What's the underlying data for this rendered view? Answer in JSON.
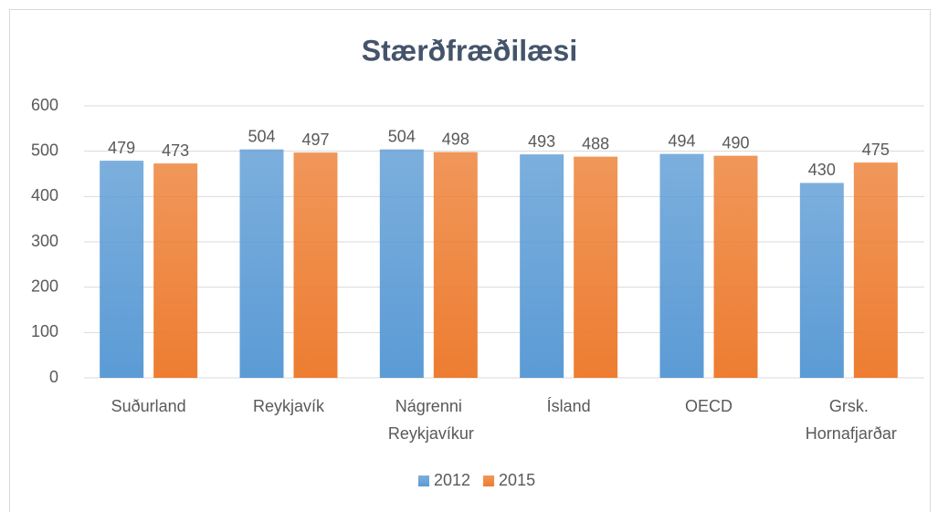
{
  "chart_data": {
    "type": "bar",
    "title": "Stærðfræðilæsi",
    "categories": [
      "Suðurland",
      "Reykjavík",
      "Nágrenni Reykjavíkur",
      "Ísland",
      "OECD",
      "Grsk. Hornafjarðar"
    ],
    "series": [
      {
        "name": "2012",
        "color": "#5b9bd5",
        "values": [
          479,
          504,
          504,
          493,
          494,
          430
        ]
      },
      {
        "name": "2015",
        "color": "#ed7d31",
        "values": [
          473,
          497,
          498,
          488,
          490,
          475
        ]
      }
    ],
    "ylim": [
      0,
      600
    ],
    "yticks": [
      0,
      100,
      200,
      300,
      400,
      500,
      600
    ],
    "grid": true,
    "legend": "bottom"
  }
}
